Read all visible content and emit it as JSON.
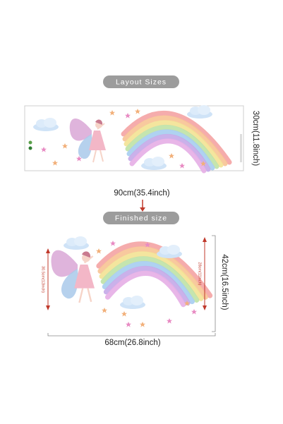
{
  "layout_section": {
    "title": "Layout Sizes",
    "height_label": "30cm(11.8inch)",
    "width_label": "90cm(35.4inch)"
  },
  "finished_section": {
    "title": "Finished size",
    "left_height_label": "30.5cm(12inch)",
    "inner_height_label": "28cm(11inch)",
    "height_label": "42cm(16.5inch)",
    "width_label": "68cm(26.8inch)"
  }
}
